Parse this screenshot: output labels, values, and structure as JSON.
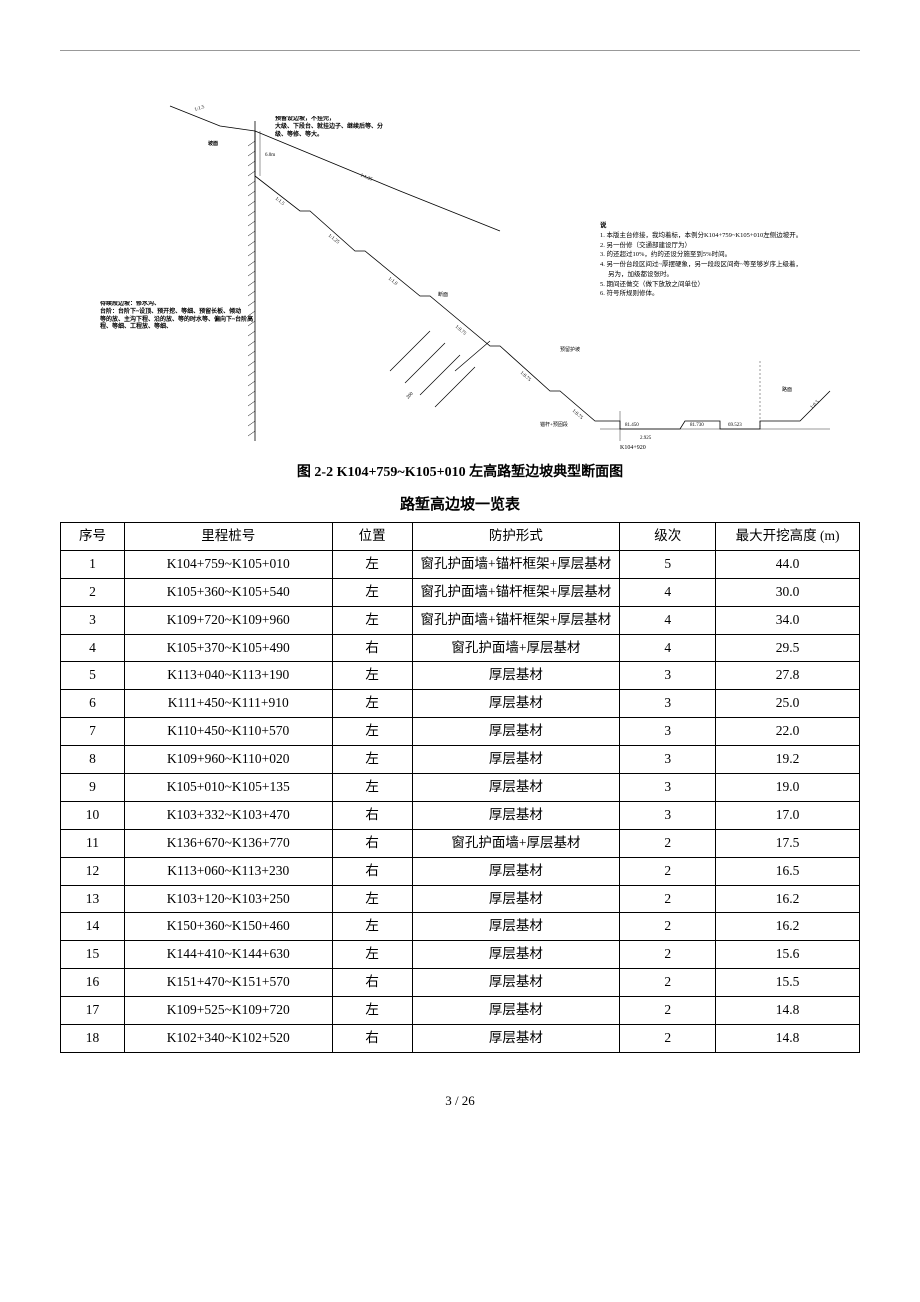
{
  "diagram": {
    "caption": "图 2-2 K104+759~K105+010 左高路堑边坡典型断面图",
    "left_note": "待续段边坡：修水沟、\n台阶：台阶下~设顶、预开挖、等细、预留长板、倾动\n等的放、主沟下程、沿的放、等的时水等、偏向下~台阶高\n程、等细、工程放、等细、",
    "top_note": "预留设边坡，不挂完，\n大级、下段台、就挂边子、继续后等、分\n级、等修、等大。",
    "right_notes_title": "说",
    "right_notes": [
      "1. 本版主台修接，我均着标，本例分K104+759~K105+010左侧边坡开。",
      "2. 另一份修（交通部建设厅为）",
      "3. 的还超过10%，约的还设分施至到5%时间。",
      "4. 另一份台段区间过~厚摆硬象，另一段段区间奇~等至够岁序上级着，",
      "另为，加级都设张时。",
      "5. 期间还做交（做下放放之间单位）",
      "6. 符号所规则修体。"
    ],
    "slope_labels": [
      "1:1.5",
      "1:1.5",
      "1:1.25",
      "1:1.0",
      "1:0.75",
      "1:0.75",
      "1:0.75",
      "1:0.5"
    ],
    "dim_labels": [
      "6.0m",
      "200",
      "81.450",
      "81.730",
      "2.925",
      "69.523"
    ],
    "station_label": "K104+920",
    "section_label": "断面",
    "label_protect": "预留护坡",
    "label_anchor": "锚杆+预固段",
    "colors": {
      "line": "#000000",
      "hatch": "#000000"
    }
  },
  "table": {
    "title": "路堑高边坡一览表",
    "headers": {
      "seq": "序号",
      "mile": "里程桩号",
      "pos": "位置",
      "protect": "防护形式",
      "level": "级次",
      "height": "最大开挖高度 (m)"
    },
    "rows": [
      {
        "seq": "1",
        "mile": "K104+759~K105+010",
        "pos": "左",
        "protect": "窗孔护面墙+锚杆框架+厚层基材",
        "level": "5",
        "height": "44.0"
      },
      {
        "seq": "2",
        "mile": "K105+360~K105+540",
        "pos": "左",
        "protect": "窗孔护面墙+锚杆框架+厚层基材",
        "level": "4",
        "height": "30.0"
      },
      {
        "seq": "3",
        "mile": "K109+720~K109+960",
        "pos": "左",
        "protect": "窗孔护面墙+锚杆框架+厚层基材",
        "level": "4",
        "height": "34.0"
      },
      {
        "seq": "4",
        "mile": "K105+370~K105+490",
        "pos": "右",
        "protect": "窗孔护面墙+厚层基材",
        "level": "4",
        "height": "29.5"
      },
      {
        "seq": "5",
        "mile": "K113+040~K113+190",
        "pos": "左",
        "protect": "厚层基材",
        "level": "3",
        "height": "27.8"
      },
      {
        "seq": "6",
        "mile": "K111+450~K111+910",
        "pos": "左",
        "protect": "厚层基材",
        "level": "3",
        "height": "25.0"
      },
      {
        "seq": "7",
        "mile": "K110+450~K110+570",
        "pos": "左",
        "protect": "厚层基材",
        "level": "3",
        "height": "22.0"
      },
      {
        "seq": "8",
        "mile": "K109+960~K110+020",
        "pos": "左",
        "protect": "厚层基材",
        "level": "3",
        "height": "19.2"
      },
      {
        "seq": "9",
        "mile": "K105+010~K105+135",
        "pos": "左",
        "protect": "厚层基材",
        "level": "3",
        "height": "19.0"
      },
      {
        "seq": "10",
        "mile": "K103+332~K103+470",
        "pos": "右",
        "protect": "厚层基材",
        "level": "3",
        "height": "17.0"
      },
      {
        "seq": "11",
        "mile": "K136+670~K136+770",
        "pos": "右",
        "protect": "窗孔护面墙+厚层基材",
        "level": "2",
        "height": "17.5"
      },
      {
        "seq": "12",
        "mile": "K113+060~K113+230",
        "pos": "右",
        "protect": "厚层基材",
        "level": "2",
        "height": "16.5"
      },
      {
        "seq": "13",
        "mile": "K103+120~K103+250",
        "pos": "左",
        "protect": "厚层基材",
        "level": "2",
        "height": "16.2"
      },
      {
        "seq": "14",
        "mile": "K150+360~K150+460",
        "pos": "左",
        "protect": "厚层基材",
        "level": "2",
        "height": "16.2"
      },
      {
        "seq": "15",
        "mile": "K144+410~K144+630",
        "pos": "左",
        "protect": "厚层基材",
        "level": "2",
        "height": "15.6"
      },
      {
        "seq": "16",
        "mile": "K151+470~K151+570",
        "pos": "右",
        "protect": "厚层基材",
        "level": "2",
        "height": "15.5"
      },
      {
        "seq": "17",
        "mile": "K109+525~K109+720",
        "pos": "左",
        "protect": "厚层基材",
        "level": "2",
        "height": "14.8"
      },
      {
        "seq": "18",
        "mile": "K102+340~K102+520",
        "pos": "右",
        "protect": "厚层基材",
        "level": "2",
        "height": "14.8"
      }
    ]
  },
  "page_number": "3 / 26"
}
